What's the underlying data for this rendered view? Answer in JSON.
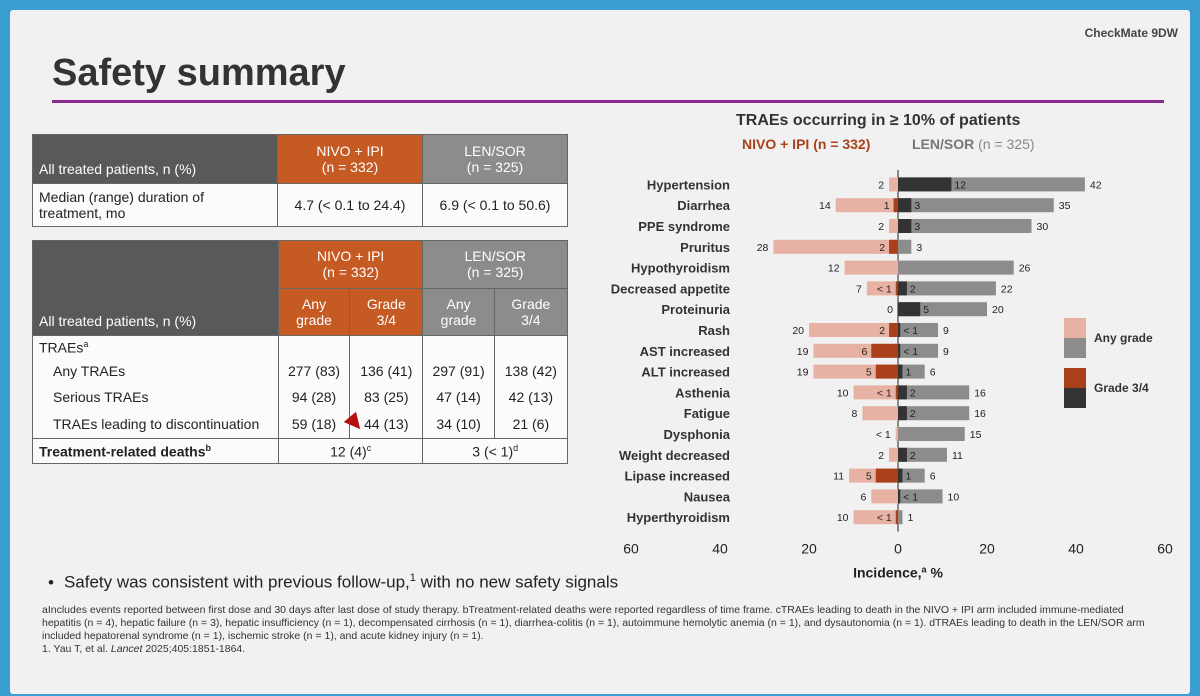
{
  "slide": {
    "study_tag": "CheckMate 9DW",
    "title": "Safety summary"
  },
  "table1": {
    "header_label": "All treated patients, n (%)",
    "arm1": "NIVO + IPI",
    "arm1_n": "(n = 332)",
    "arm2": "LEN/SOR",
    "arm2_n": "(n = 325)",
    "row_label_1": "Median (range) duration of",
    "row_label_2": "treatment, mo",
    "arm1_value": "4.7 (< 0.1 to 24.4)",
    "arm2_value": "6.9 (< 0.1 to 50.6)"
  },
  "table2": {
    "header_label": "All treated patients, n (%)",
    "arm1": "NIVO + IPI",
    "arm1_n": "(n = 332)",
    "arm2": "LEN/SOR",
    "arm2_n": "(n = 325)",
    "any_1": "Any",
    "any_2": "grade",
    "g34_1": "Grade",
    "g34_2": "3/4",
    "section_label": "TRAEs",
    "section_sup": "a",
    "rows": [
      {
        "label": "Any TRAEs",
        "v1": "277 (83)",
        "v2": "136 (41)",
        "v3": "297 (91)",
        "v4": "138 (42)"
      },
      {
        "label": "Serious TRAEs",
        "v1": "94 (28)",
        "v2": "83 (25)",
        "v3": "47 (14)",
        "v4": "42 (13)"
      },
      {
        "label": "TRAEs leading to discontinuation",
        "v1": "59 (18)",
        "v2": "44 (13)",
        "v3": "34 (10)",
        "v4": "21 (6)"
      }
    ],
    "deaths_label": "Treatment-related deaths",
    "deaths_sup": "b",
    "deaths_arm1": "12 (4)",
    "deaths_arm1_sup": "c",
    "deaths_arm2": "3 (< 1)",
    "deaths_arm2_sup": "d"
  },
  "chart_header": {
    "title": "TRAEs occurring in ≥ 10% of patients",
    "nivo_legend": "NIVO + IPI (n = 332)",
    "len_legend_name": "LEN/SOR",
    "len_legend_n": "(n = 325)"
  },
  "chart_data": {
    "type": "bar",
    "orientation": "horizontal-butterfly",
    "title": "TRAEs occurring in ≥ 10% of patients",
    "xlabel": "Incidence,",
    "xlabel_sup": "a",
    "xlabel_unit": " %",
    "xlim": [
      -60,
      60
    ],
    "xticks": [
      -60,
      -40,
      -20,
      0,
      20,
      40,
      60
    ],
    "xtick_labels": [
      "60",
      "40",
      "20",
      "0",
      "20",
      "40",
      "60"
    ],
    "categories": [
      "Hypertension",
      "Diarrhea",
      "PPE syndrome",
      "Pruritus",
      "Hypothyroidism",
      "Decreased appetite",
      "Proteinuria",
      "Rash",
      "AST increased",
      "ALT increased",
      "Asthenia",
      "Fatigue",
      "Dysphonia",
      "Weight decreased",
      "Lipase increased",
      "Nausea",
      "Hyperthyroidism"
    ],
    "series": [
      {
        "name": "NIVO + IPI Any grade",
        "side": "left",
        "values": [
          2,
          14,
          2,
          28,
          12,
          7,
          0,
          20,
          19,
          19,
          10,
          8,
          0.5,
          2,
          11,
          6,
          10
        ],
        "labels": [
          "2",
          "14",
          "2",
          "28",
          "12",
          "7",
          "0",
          "20",
          "19",
          "19",
          "10",
          "8",
          "< 1",
          "2",
          "11",
          "6",
          "10"
        ]
      },
      {
        "name": "NIVO + IPI Grade 3/4",
        "side": "left",
        "values": [
          0,
          1,
          0,
          2,
          0,
          0.5,
          0,
          2,
          6,
          5,
          0.5,
          0,
          0,
          0,
          5,
          0,
          0.5
        ],
        "labels": [
          "",
          "1",
          "",
          "2",
          "",
          "< 1",
          "",
          "2",
          "6",
          "5",
          "< 1",
          "",
          "",
          "",
          "5",
          "",
          "< 1"
        ]
      },
      {
        "name": "LEN/SOR Any grade",
        "side": "right",
        "values": [
          42,
          35,
          30,
          3,
          26,
          22,
          20,
          9,
          9,
          6,
          16,
          16,
          15,
          11,
          6,
          10,
          1
        ],
        "labels": [
          "42",
          "35",
          "30",
          "3",
          "26",
          "22",
          "20",
          "9",
          "9",
          "6",
          "16",
          "16",
          "15",
          "11",
          "6",
          "10",
          "1"
        ]
      },
      {
        "name": "LEN/SOR Grade 3/4",
        "side": "right",
        "values": [
          12,
          3,
          3,
          0,
          0,
          2,
          5,
          0.5,
          0.5,
          1,
          2,
          2,
          0,
          2,
          1,
          0.5,
          0
        ],
        "labels": [
          "12",
          "3",
          "3",
          "",
          "",
          "2",
          "5",
          "< 1",
          "< 1",
          "1",
          "2",
          "2",
          "",
          "2",
          "1",
          "< 1",
          ""
        ]
      }
    ],
    "legend": [
      {
        "label": "Any grade",
        "colors": [
          "#e7b2a4",
          "#8c8c8c"
        ]
      },
      {
        "label": "Grade 3/4",
        "colors": [
          "#a9401a",
          "#333333"
        ]
      }
    ],
    "legend_position": "right",
    "colors": {
      "nivo_any": "#e7b2a4",
      "nivo_g34": "#a9401a",
      "len_any": "#8c8c8c",
      "len_g34": "#333333"
    }
  },
  "bullet": {
    "text_a": "Safety was consistent with previous follow-up,",
    "sup": "1",
    "text_b": " with no new safety signals"
  },
  "footnotes": {
    "line1": "aIncludes events reported between first dose and 30 days after last dose of study therapy. bTreatment-related deaths were reported regardless of time frame. cTRAEs leading to death in the NIVO + IPI arm included immune-mediated hepatitis (n = 4), hepatic failure (n = 3), hepatic insufficiency (n = 1), decompensated cirrhosis (n = 1), diarrhea-colitis (n = 1), autoimmune hemolytic anemia (n = 1), and dysautonomia (n = 1). dTRAEs leading to death in the LEN/SOR arm included hepatorenal syndrome (n = 1), ischemic stroke (n = 1), and acute kidney injury (n = 1).",
    "ref_a": "1. Yau T, et al. ",
    "ref_journal": "Lancet",
    "ref_b": " 2025;405:1851-1864."
  }
}
